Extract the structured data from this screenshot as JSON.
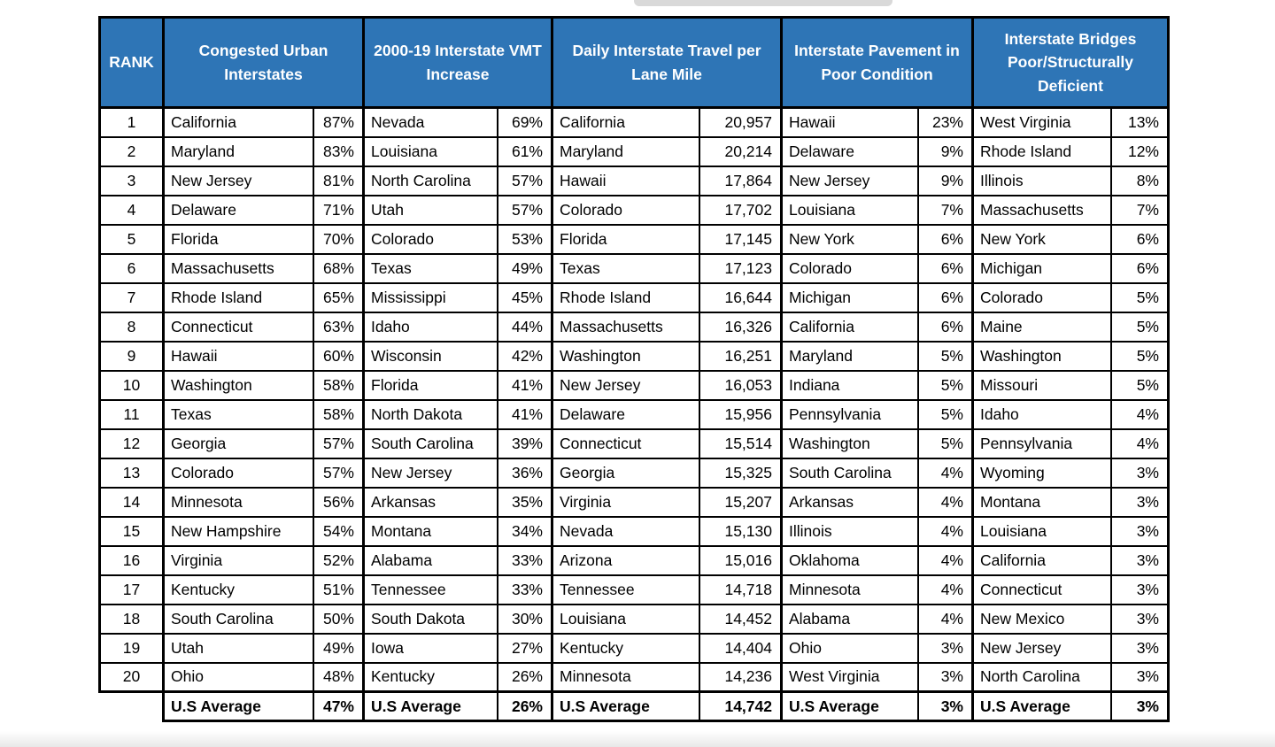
{
  "colors": {
    "header_bg": "#2E75B6",
    "header_text": "#FFFFFF",
    "border": "#000000",
    "body_bg": "#FFFFFF"
  },
  "chart_data": {
    "type": "table",
    "rank_header": "RANK",
    "group_headers": [
      "Congested Urban Interstates",
      "2000-19 Interstate VMT Increase",
      "Daily Interstate Travel per Lane Mile",
      "Interstate Pavement in Poor Condition",
      "Interstate Bridges Poor/Structurally Deficient"
    ],
    "rows": [
      [
        "1",
        "California",
        "87%",
        "Nevada",
        "69%",
        "California",
        "20,957",
        "Hawaii",
        "23%",
        "West Virginia",
        "13%"
      ],
      [
        "2",
        "Maryland",
        "83%",
        "Louisiana",
        "61%",
        "Maryland",
        "20,214",
        "Delaware",
        "9%",
        "Rhode Island",
        "12%"
      ],
      [
        "3",
        "New Jersey",
        "81%",
        "North Carolina",
        "57%",
        "Hawaii",
        "17,864",
        "New Jersey",
        "9%",
        "Illinois",
        "8%"
      ],
      [
        "4",
        "Delaware",
        "71%",
        "Utah",
        "57%",
        "Colorado",
        "17,702",
        "Louisiana",
        "7%",
        "Massachusetts",
        "7%"
      ],
      [
        "5",
        "Florida",
        "70%",
        "Colorado",
        "53%",
        "Florida",
        "17,145",
        "New York",
        "6%",
        "New York",
        "6%"
      ],
      [
        "6",
        "Massachusetts",
        "68%",
        "Texas",
        "49%",
        "Texas",
        "17,123",
        "Colorado",
        "6%",
        "Michigan",
        "6%"
      ],
      [
        "7",
        "Rhode Island",
        "65%",
        "Mississippi",
        "45%",
        "Rhode Island",
        "16,644",
        "Michigan",
        "6%",
        "Colorado",
        "5%"
      ],
      [
        "8",
        "Connecticut",
        "63%",
        "Idaho",
        "44%",
        "Massachusetts",
        "16,326",
        "California",
        "6%",
        "Maine",
        "5%"
      ],
      [
        "9",
        "Hawaii",
        "60%",
        "Wisconsin",
        "42%",
        "Washington",
        "16,251",
        "Maryland",
        "5%",
        "Washington",
        "5%"
      ],
      [
        "10",
        "Washington",
        "58%",
        "Florida",
        "41%",
        "New Jersey",
        "16,053",
        "Indiana",
        "5%",
        "Missouri",
        "5%"
      ],
      [
        "11",
        "Texas",
        "58%",
        "North Dakota",
        "41%",
        "Delaware",
        "15,956",
        "Pennsylvania",
        "5%",
        "Idaho",
        "4%"
      ],
      [
        "12",
        "Georgia",
        "57%",
        "South Carolina",
        "39%",
        "Connecticut",
        "15,514",
        "Washington",
        "5%",
        "Pennsylvania",
        "4%"
      ],
      [
        "13",
        "Colorado",
        "57%",
        "New Jersey",
        "36%",
        "Georgia",
        "15,325",
        "South Carolina",
        "4%",
        "Wyoming",
        "3%"
      ],
      [
        "14",
        "Minnesota",
        "56%",
        "Arkansas",
        "35%",
        "Virginia",
        "15,207",
        "Arkansas",
        "4%",
        "Montana",
        "3%"
      ],
      [
        "15",
        "New Hampshire",
        "54%",
        "Montana",
        "34%",
        "Nevada",
        "15,130",
        "Illinois",
        "4%",
        "Louisiana",
        "3%"
      ],
      [
        "16",
        "Virginia",
        "52%",
        "Alabama",
        "33%",
        "Arizona",
        "15,016",
        "Oklahoma",
        "4%",
        "California",
        "3%"
      ],
      [
        "17",
        "Kentucky",
        "51%",
        "Tennessee",
        "33%",
        "Tennessee",
        "14,718",
        "Minnesota",
        "4%",
        "Connecticut",
        "3%"
      ],
      [
        "18",
        "South Carolina",
        "50%",
        "South Dakota",
        "30%",
        "Louisiana",
        "14,452",
        "Alabama",
        "4%",
        "New Mexico",
        "3%"
      ],
      [
        "19",
        "Utah",
        "49%",
        "Iowa",
        "27%",
        "Kentucky",
        "14,404",
        "Ohio",
        "3%",
        "New Jersey",
        "3%"
      ],
      [
        "20",
        "Ohio",
        "48%",
        "Kentucky",
        "26%",
        "Minnesota",
        "14,236",
        "West Virginia",
        "3%",
        "North Carolina",
        "3%"
      ]
    ],
    "average_row": [
      "U.S Average",
      "47%",
      "U.S Average",
      "26%",
      "U.S Average",
      "14,742",
      "U.S Average",
      "3%",
      "U.S Average",
      "3%"
    ]
  }
}
